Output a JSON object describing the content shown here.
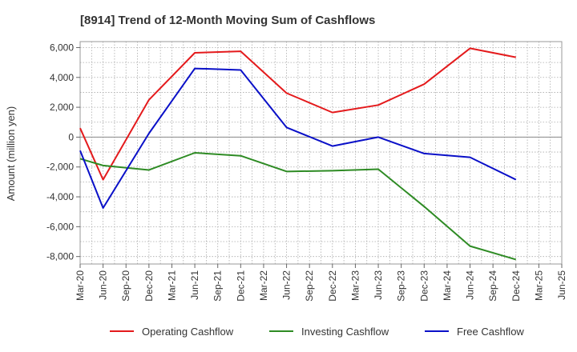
{
  "chart_data": {
    "type": "line",
    "title": "[8914]  Trend of 12-Month Moving Sum of Cashflows",
    "xlabel": "",
    "ylabel": "Amount (million yen)",
    "categories": [
      "Mar-20",
      "Jun-20",
      "Sep-20",
      "Dec-20",
      "Mar-21",
      "Jun-21",
      "Sep-21",
      "Dec-21",
      "Mar-22",
      "Jun-22",
      "Sep-22",
      "Dec-22",
      "Mar-23",
      "Jun-23",
      "Sep-23",
      "Dec-23",
      "Mar-24",
      "Jun-24",
      "Sep-24",
      "Dec-24",
      "Mar-25",
      "Jun-25"
    ],
    "ylim": [
      -8500,
      6400
    ],
    "yticks": [
      6000,
      4000,
      2000,
      0,
      -2000,
      -4000,
      -6000,
      -8000
    ],
    "ytick_labels": [
      "6,000",
      "4,000",
      "2,000",
      "0",
      "-2,000",
      "-4,000",
      "-6,000",
      "-8,000"
    ],
    "grid": true,
    "legend_position": "bottom",
    "series": [
      {
        "name": "Operating Cashflow",
        "color": "#e41a1c",
        "points": [
          {
            "x": "Mar-20",
            "y": 600
          },
          {
            "x": "Jun-20",
            "y": -2850
          },
          {
            "x": "Dec-20",
            "y": 2500
          },
          {
            "x": "Jun-21",
            "y": 5650
          },
          {
            "x": "Dec-21",
            "y": 5750
          },
          {
            "x": "Jun-22",
            "y": 2950
          },
          {
            "x": "Dec-22",
            "y": 1650
          },
          {
            "x": "Jun-23",
            "y": 2150
          },
          {
            "x": "Dec-23",
            "y": 3550
          },
          {
            "x": "Jun-24",
            "y": 5950
          },
          {
            "x": "Dec-24",
            "y": 5350
          }
        ]
      },
      {
        "name": "Investing Cashflow",
        "color": "#2e8b24",
        "points": [
          {
            "x": "Mar-20",
            "y": -1450
          },
          {
            "x": "Jun-20",
            "y": -1900
          },
          {
            "x": "Dec-20",
            "y": -2200
          },
          {
            "x": "Jun-21",
            "y": -1050
          },
          {
            "x": "Dec-21",
            "y": -1250
          },
          {
            "x": "Jun-22",
            "y": -2300
          },
          {
            "x": "Dec-22",
            "y": -2250
          },
          {
            "x": "Jun-23",
            "y": -2150
          },
          {
            "x": "Dec-23",
            "y": -4650
          },
          {
            "x": "Jun-24",
            "y": -7300
          },
          {
            "x": "Dec-24",
            "y": -8200
          }
        ]
      },
      {
        "name": "Free Cashflow",
        "color": "#0a10c8",
        "points": [
          {
            "x": "Mar-20",
            "y": -900
          },
          {
            "x": "Jun-20",
            "y": -4750
          },
          {
            "x": "Dec-20",
            "y": 250
          },
          {
            "x": "Jun-21",
            "y": 4600
          },
          {
            "x": "Dec-21",
            "y": 4500
          },
          {
            "x": "Jun-22",
            "y": 650
          },
          {
            "x": "Dec-22",
            "y": -600
          },
          {
            "x": "Jun-23",
            "y": 0
          },
          {
            "x": "Dec-23",
            "y": -1100
          },
          {
            "x": "Jun-24",
            "y": -1350
          },
          {
            "x": "Dec-24",
            "y": -2850
          }
        ]
      }
    ]
  }
}
